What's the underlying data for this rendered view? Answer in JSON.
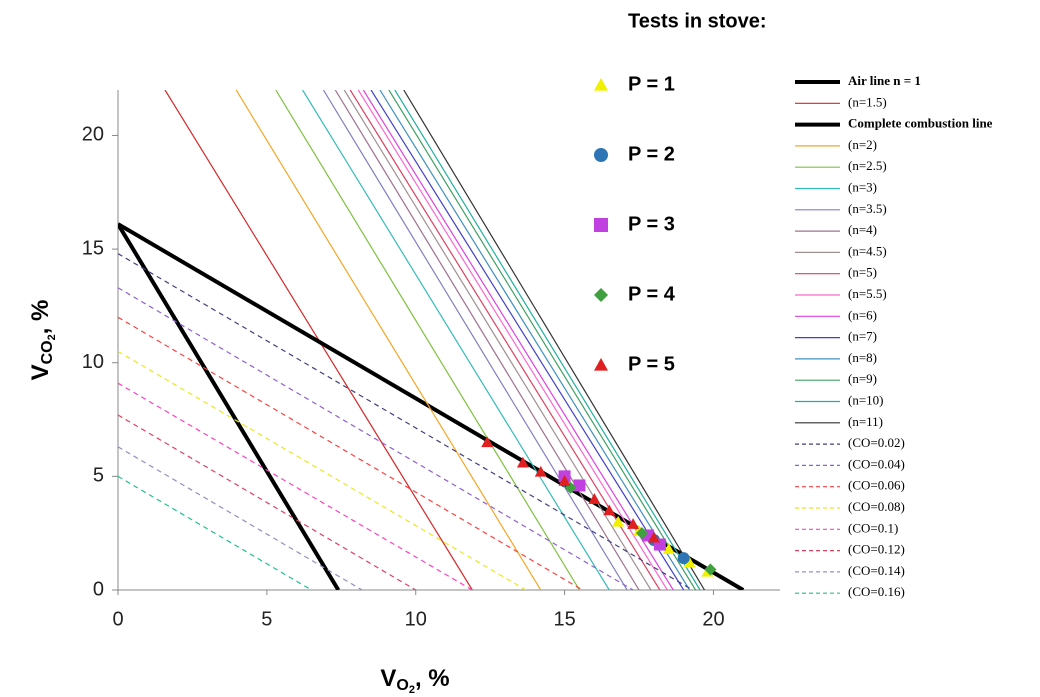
{
  "chart_data": {
    "type": "line",
    "xlabel": [
      "V",
      "O",
      "2",
      ", %"
    ],
    "ylabel": [
      "V",
      "CO",
      "2",
      ", %"
    ],
    "xlim": [
      0,
      22
    ],
    "ylim": [
      0,
      22
    ],
    "xticks": [
      0,
      5,
      10,
      15,
      20
    ],
    "yticks": [
      0,
      5,
      10,
      15,
      20
    ],
    "scatter_legend_title": "Tests in stove:",
    "series": [
      {
        "type": "line",
        "name": "Air line n = 1",
        "color": "#000000",
        "width": 4,
        "dash": false,
        "x": [
          0,
          7.4
        ],
        "values": [
          16.1,
          0
        ]
      },
      {
        "type": "line",
        "name": "(n=1.5)",
        "color": "#d62728",
        "width": 1.2,
        "dash": false,
        "x": [
          1.58,
          11.9
        ],
        "values": [
          22,
          0
        ]
      },
      {
        "type": "line",
        "name": "Complete combustion line",
        "color": "#000000",
        "width": 4,
        "dash": false,
        "x": [
          0,
          21
        ],
        "values": [
          16.1,
          0
        ]
      },
      {
        "type": "line",
        "name": "(n=2)",
        "color": "#f5a623",
        "width": 1.2,
        "dash": false,
        "x": [
          3.97,
          14.2
        ],
        "values": [
          22,
          0
        ]
      },
      {
        "type": "line",
        "name": "(n=2.5)",
        "color": "#7fc241",
        "width": 1.2,
        "dash": false,
        "x": [
          5.3,
          15.5
        ],
        "values": [
          22,
          0
        ]
      },
      {
        "type": "line",
        "name": "(n=3)",
        "color": "#33bbbb",
        "width": 1.2,
        "dash": false,
        "x": [
          6.2,
          16.5
        ],
        "values": [
          22,
          0
        ]
      },
      {
        "type": "line",
        "name": "(n=3.5)",
        "color": "#8080c0",
        "width": 1.2,
        "dash": false,
        "x": [
          6.9,
          17.1
        ],
        "values": [
          22,
          0
        ]
      },
      {
        "type": "line",
        "name": "(n=4)",
        "color": "#a07090",
        "width": 1.2,
        "dash": false,
        "x": [
          7.3,
          17.5
        ],
        "values": [
          22,
          0
        ]
      },
      {
        "type": "line",
        "name": "(n=4.5)",
        "color": "#a09090",
        "width": 1.2,
        "dash": false,
        "x": [
          7.6,
          17.9
        ],
        "values": [
          22,
          0
        ]
      },
      {
        "type": "line",
        "name": "(n=5)",
        "color": "#e04060",
        "width": 1.2,
        "dash": false,
        "x": [
          7.8,
          18.2
        ],
        "values": [
          22,
          0
        ]
      },
      {
        "type": "line",
        "name": "(n=5.5)",
        "color": "#ff66cc",
        "width": 1.2,
        "dash": false,
        "x": [
          8.07,
          18.45
        ],
        "values": [
          22,
          0
        ]
      },
      {
        "type": "line",
        "name": "(n=6)",
        "color": "#e040e0",
        "width": 1.2,
        "dash": false,
        "x": [
          8.24,
          18.65
        ],
        "values": [
          22,
          0
        ]
      },
      {
        "type": "line",
        "name": "(n=7)",
        "color": "#4040d0",
        "width": 1.2,
        "dash": false,
        "x": [
          8.5,
          19.0
        ],
        "values": [
          22,
          0
        ]
      },
      {
        "type": "line",
        "name": "(n=8)",
        "color": "#4090c0",
        "width": 1.2,
        "dash": false,
        "x": [
          8.8,
          19.2
        ],
        "values": [
          22,
          0
        ]
      },
      {
        "type": "line",
        "name": "(n=9)",
        "color": "#40a060",
        "width": 1.2,
        "dash": false,
        "x": [
          9.1,
          19.4
        ],
        "values": [
          22,
          0
        ]
      },
      {
        "type": "line",
        "name": "(n=10)",
        "color": "#20b0a0",
        "width": 1.2,
        "dash": false,
        "x": [
          9.3,
          19.55
        ],
        "values": [
          22,
          0
        ]
      },
      {
        "type": "line",
        "name": "(n=11)",
        "color": "#333333",
        "width": 1.2,
        "dash": false,
        "x": [
          9.6,
          19.7
        ],
        "values": [
          22,
          0
        ]
      },
      {
        "type": "line",
        "name": "(CO=0.02)",
        "color": "#404080",
        "width": 1.2,
        "dash": true,
        "x": [
          0,
          19.3
        ],
        "values": [
          14.8,
          0
        ]
      },
      {
        "type": "line",
        "name": "(CO=0.04)",
        "color": "#9060d0",
        "width": 1.2,
        "dash": true,
        "x": [
          0,
          17.3
        ],
        "values": [
          13.3,
          0
        ]
      },
      {
        "type": "line",
        "name": "(CO=0.06)",
        "color": "#ff4040",
        "width": 1.2,
        "dash": true,
        "x": [
          0,
          15.6
        ],
        "values": [
          12.0,
          0
        ]
      },
      {
        "type": "line",
        "name": "(CO=0.08)",
        "color": "#e8e820",
        "width": 1.2,
        "dash": true,
        "x": [
          0,
          13.7
        ],
        "values": [
          10.5,
          0
        ]
      },
      {
        "type": "line",
        "name": "(CO=0.1)",
        "color": "#ff40c0",
        "width": 1.2,
        "dash": true,
        "x": [
          0,
          11.9
        ],
        "values": [
          9.1,
          0
        ]
      },
      {
        "type": "line",
        "name": "(CO=0.12)",
        "color": "#e04060",
        "width": 1.2,
        "dash": true,
        "x": [
          0,
          10.0
        ],
        "values": [
          7.7,
          0
        ]
      },
      {
        "type": "line",
        "name": "(CO=0.14)",
        "color": "#9090c0",
        "width": 1.2,
        "dash": true,
        "x": [
          0,
          8.2
        ],
        "values": [
          6.3,
          0
        ]
      },
      {
        "type": "line",
        "name": "(CO=0.16)",
        "color": "#20c090",
        "width": 1.2,
        "dash": true,
        "x": [
          0,
          6.5
        ],
        "values": [
          5.0,
          0
        ]
      },
      {
        "type": "scatter",
        "name": "P = 1",
        "color": "#f0f000",
        "marker": "triangle",
        "x": [
          16.8,
          17.5,
          18.5,
          19.2,
          19.8
        ],
        "values": [
          3.0,
          2.6,
          1.8,
          1.2,
          0.8
        ]
      },
      {
        "type": "scatter",
        "name": "P = 2",
        "color": "#2e75b6",
        "marker": "circle",
        "x": [
          18.0,
          19.0
        ],
        "values": [
          2.2,
          1.4
        ]
      },
      {
        "type": "scatter",
        "name": "P = 3",
        "color": "#c040e0",
        "marker": "square",
        "x": [
          15.0,
          15.5,
          17.8,
          18.2
        ],
        "values": [
          5.0,
          4.6,
          2.4,
          2.0
        ]
      },
      {
        "type": "scatter",
        "name": "P = 4",
        "color": "#40a040",
        "marker": "diamond",
        "x": [
          15.2,
          17.6,
          19.9
        ],
        "values": [
          4.5,
          2.5,
          0.9
        ]
      },
      {
        "type": "scatter",
        "name": "P = 5",
        "color": "#e02020",
        "marker": "triangle",
        "x": [
          12.4,
          13.6,
          14.2,
          15.0,
          16.0,
          16.5,
          17.3,
          18.0
        ],
        "values": [
          6.5,
          5.6,
          5.2,
          4.8,
          4.0,
          3.5,
          2.9,
          2.3
        ]
      }
    ]
  }
}
